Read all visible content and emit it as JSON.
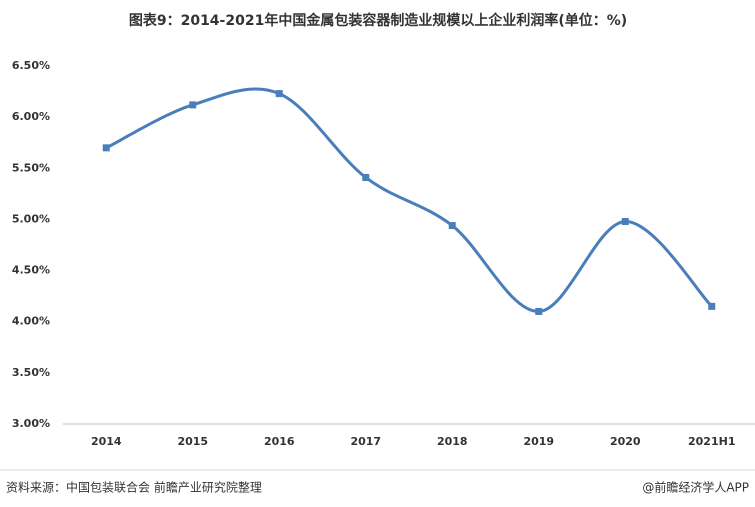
{
  "chart_data": {
    "type": "line",
    "title": "图表9：2014-2021年中国金属包装容器制造业规模以上企业利润率(单位：%)",
    "categories": [
      "2014",
      "2015",
      "2016",
      "2017",
      "2018",
      "2019",
      "2020",
      "2021H1"
    ],
    "series": [
      {
        "name": "利润率",
        "color": "#4a7ebb",
        "values": [
          5.7,
          6.12,
          6.23,
          5.41,
          4.94,
          4.1,
          4.98,
          4.15
        ]
      }
    ],
    "ylim": [
      3,
      6.5
    ],
    "yticks": [
      {
        "value": 3,
        "label": "3.00%"
      },
      {
        "value": 3.5,
        "label": "3.50%"
      },
      {
        "value": 4,
        "label": "4.00%"
      },
      {
        "value": 4.5,
        "label": "4.50%"
      },
      {
        "value": 5,
        "label": "5.00%"
      },
      {
        "value": 5.5,
        "label": "5.50%"
      },
      {
        "value": 6,
        "label": "6.00%"
      },
      {
        "value": 6.5,
        "label": "6.50%"
      }
    ],
    "grid": false,
    "source": "资料来源：中国包装联合会 前瞻产业研究院整理",
    "credit": "@前瞻经济学人APP"
  }
}
